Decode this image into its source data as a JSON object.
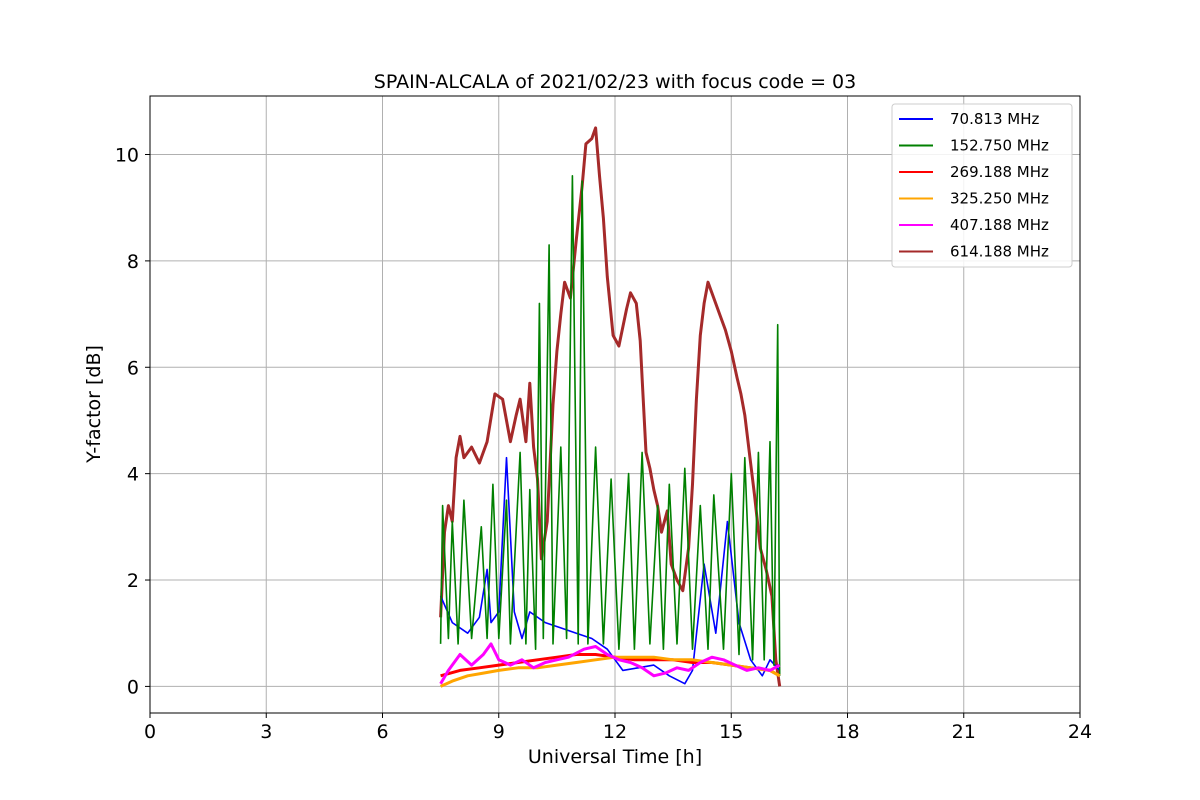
{
  "chart_data": {
    "type": "line",
    "title": "SPAIN-ALCALA of 2021/02/23 with focus code = 03",
    "xlabel": "Universal Time [h]",
    "ylabel": "Y-factor [dB]",
    "xlim": [
      0,
      24
    ],
    "ylim": [
      -0.5,
      11.1
    ],
    "xticks": [
      0,
      3,
      6,
      9,
      12,
      15,
      18,
      21,
      24
    ],
    "yticks": [
      0,
      2,
      4,
      6,
      8,
      10
    ],
    "grid": true,
    "legend_position": "top-right",
    "series": [
      {
        "name": " 70.813 MHz",
        "color": "#0000ff",
        "points": [
          [
            7.5,
            1.7
          ],
          [
            7.8,
            1.2
          ],
          [
            8.2,
            1.0
          ],
          [
            8.5,
            1.3
          ],
          [
            8.7,
            2.2
          ],
          [
            8.8,
            1.2
          ],
          [
            9.0,
            1.4
          ],
          [
            9.2,
            4.3
          ],
          [
            9.4,
            1.4
          ],
          [
            9.6,
            0.9
          ],
          [
            9.8,
            1.4
          ],
          [
            10.2,
            1.2
          ],
          [
            10.6,
            1.1
          ],
          [
            11.0,
            1.0
          ],
          [
            11.4,
            0.9
          ],
          [
            11.8,
            0.7
          ],
          [
            12.2,
            0.3
          ],
          [
            12.6,
            0.35
          ],
          [
            13.0,
            0.4
          ],
          [
            13.4,
            0.2
          ],
          [
            13.8,
            0.05
          ],
          [
            14.0,
            0.3
          ],
          [
            14.3,
            2.3
          ],
          [
            14.6,
            1.0
          ],
          [
            14.9,
            3.1
          ],
          [
            15.2,
            1.2
          ],
          [
            15.5,
            0.5
          ],
          [
            15.8,
            0.2
          ],
          [
            16.0,
            0.5
          ],
          [
            16.25,
            0.3
          ]
        ]
      },
      {
        "name": "152.750 MHz",
        "color": "#008000",
        "points": [
          [
            7.5,
            0.8
          ],
          [
            7.55,
            3.4
          ],
          [
            7.7,
            0.9
          ],
          [
            7.8,
            3.1
          ],
          [
            7.95,
            0.8
          ],
          [
            8.1,
            3.5
          ],
          [
            8.3,
            0.9
          ],
          [
            8.55,
            3.0
          ],
          [
            8.7,
            0.9
          ],
          [
            8.85,
            3.8
          ],
          [
            9.0,
            0.9
          ],
          [
            9.2,
            3.5
          ],
          [
            9.3,
            0.8
          ],
          [
            9.55,
            4.4
          ],
          [
            9.7,
            0.8
          ],
          [
            9.8,
            3.7
          ],
          [
            9.95,
            0.7
          ],
          [
            10.05,
            7.2
          ],
          [
            10.15,
            0.9
          ],
          [
            10.3,
            8.3
          ],
          [
            10.4,
            0.8
          ],
          [
            10.6,
            4.5
          ],
          [
            10.75,
            0.9
          ],
          [
            10.9,
            9.6
          ],
          [
            11.05,
            0.8
          ],
          [
            11.15,
            9.5
          ],
          [
            11.3,
            0.8
          ],
          [
            11.5,
            4.5
          ],
          [
            11.7,
            0.8
          ],
          [
            11.9,
            3.9
          ],
          [
            12.1,
            0.7
          ],
          [
            12.35,
            4.0
          ],
          [
            12.5,
            0.7
          ],
          [
            12.7,
            4.4
          ],
          [
            12.9,
            0.8
          ],
          [
            13.1,
            3.4
          ],
          [
            13.25,
            0.7
          ],
          [
            13.4,
            3.8
          ],
          [
            13.6,
            0.8
          ],
          [
            13.8,
            4.1
          ],
          [
            14.0,
            0.7
          ],
          [
            14.2,
            3.4
          ],
          [
            14.4,
            0.7
          ],
          [
            14.55,
            3.6
          ],
          [
            14.8,
            0.7
          ],
          [
            15.0,
            4.0
          ],
          [
            15.2,
            0.6
          ],
          [
            15.35,
            4.3
          ],
          [
            15.55,
            0.5
          ],
          [
            15.7,
            4.4
          ],
          [
            15.85,
            0.5
          ],
          [
            16.0,
            4.6
          ],
          [
            16.1,
            0.4
          ],
          [
            16.2,
            6.8
          ],
          [
            16.25,
            0.2
          ]
        ]
      },
      {
        "name": "269.188 MHz",
        "color": "#ff0000",
        "points": [
          [
            7.5,
            0.2
          ],
          [
            8.0,
            0.3
          ],
          [
            8.5,
            0.35
          ],
          [
            9.0,
            0.4
          ],
          [
            9.5,
            0.45
          ],
          [
            10.0,
            0.5
          ],
          [
            10.5,
            0.55
          ],
          [
            11.0,
            0.6
          ],
          [
            11.5,
            0.6
          ],
          [
            12.0,
            0.55
          ],
          [
            12.5,
            0.5
          ],
          [
            13.0,
            0.5
          ],
          [
            13.5,
            0.5
          ],
          [
            14.0,
            0.45
          ],
          [
            14.5,
            0.45
          ],
          [
            15.0,
            0.4
          ],
          [
            15.5,
            0.35
          ],
          [
            16.0,
            0.3
          ],
          [
            16.25,
            0.2
          ]
        ]
      },
      {
        "name": "325.250 MHz",
        "color": "#ffa500",
        "points": [
          [
            7.5,
            0.0
          ],
          [
            7.8,
            0.1
          ],
          [
            8.2,
            0.2
          ],
          [
            8.6,
            0.25
          ],
          [
            9.0,
            0.3
          ],
          [
            9.5,
            0.35
          ],
          [
            10.0,
            0.35
          ],
          [
            10.5,
            0.4
          ],
          [
            11.0,
            0.45
          ],
          [
            11.5,
            0.5
          ],
          [
            12.0,
            0.55
          ],
          [
            12.5,
            0.55
          ],
          [
            13.0,
            0.55
          ],
          [
            13.5,
            0.5
          ],
          [
            14.0,
            0.5
          ],
          [
            14.5,
            0.45
          ],
          [
            15.0,
            0.4
          ],
          [
            15.5,
            0.35
          ],
          [
            16.0,
            0.3
          ],
          [
            16.25,
            0.2
          ]
        ]
      },
      {
        "name": "407.188 MHz",
        "color": "#ff00ff",
        "points": [
          [
            7.5,
            0.05
          ],
          [
            7.7,
            0.3
          ],
          [
            8.0,
            0.6
          ],
          [
            8.3,
            0.4
          ],
          [
            8.6,
            0.6
          ],
          [
            8.8,
            0.8
          ],
          [
            9.0,
            0.5
          ],
          [
            9.3,
            0.4
          ],
          [
            9.6,
            0.5
          ],
          [
            9.9,
            0.35
          ],
          [
            10.2,
            0.45
          ],
          [
            10.5,
            0.5
          ],
          [
            10.8,
            0.55
          ],
          [
            11.2,
            0.7
          ],
          [
            11.5,
            0.75
          ],
          [
            11.8,
            0.6
          ],
          [
            12.1,
            0.5
          ],
          [
            12.4,
            0.45
          ],
          [
            12.7,
            0.35
          ],
          [
            13.0,
            0.2
          ],
          [
            13.3,
            0.25
          ],
          [
            13.6,
            0.35
          ],
          [
            13.9,
            0.3
          ],
          [
            14.2,
            0.45
          ],
          [
            14.5,
            0.55
          ],
          [
            14.8,
            0.5
          ],
          [
            15.1,
            0.4
          ],
          [
            15.4,
            0.3
          ],
          [
            15.7,
            0.35
          ],
          [
            16.0,
            0.3
          ],
          [
            16.25,
            0.4
          ]
        ]
      },
      {
        "name": "614.188 MHz",
        "color": "#a52a2a",
        "points": [
          [
            7.5,
            1.3
          ],
          [
            7.6,
            2.9
          ],
          [
            7.7,
            3.4
          ],
          [
            7.8,
            3.1
          ],
          [
            7.9,
            4.3
          ],
          [
            8.0,
            4.7
          ],
          [
            8.1,
            4.3
          ],
          [
            8.3,
            4.5
          ],
          [
            8.5,
            4.2
          ],
          [
            8.7,
            4.6
          ],
          [
            8.9,
            5.5
          ],
          [
            9.1,
            5.4
          ],
          [
            9.3,
            4.6
          ],
          [
            9.45,
            5.1
          ],
          [
            9.55,
            5.4
          ],
          [
            9.7,
            4.6
          ],
          [
            9.8,
            5.7
          ],
          [
            9.9,
            4.5
          ],
          [
            10.0,
            3.9
          ],
          [
            10.1,
            2.4
          ],
          [
            10.25,
            3.1
          ],
          [
            10.4,
            5.3
          ],
          [
            10.5,
            6.3
          ],
          [
            10.6,
            7.0
          ],
          [
            10.7,
            7.6
          ],
          [
            10.85,
            7.3
          ],
          [
            11.0,
            8.4
          ],
          [
            11.15,
            9.4
          ],
          [
            11.25,
            10.2
          ],
          [
            11.4,
            10.3
          ],
          [
            11.5,
            10.5
          ],
          [
            11.6,
            9.6
          ],
          [
            11.7,
            8.8
          ],
          [
            11.8,
            7.7
          ],
          [
            11.95,
            6.6
          ],
          [
            12.1,
            6.4
          ],
          [
            12.3,
            7.1
          ],
          [
            12.4,
            7.4
          ],
          [
            12.55,
            7.2
          ],
          [
            12.65,
            6.5
          ],
          [
            12.7,
            5.8
          ],
          [
            12.8,
            4.4
          ],
          [
            12.9,
            4.1
          ],
          [
            13.0,
            3.7
          ],
          [
            13.1,
            3.4
          ],
          [
            13.2,
            2.9
          ],
          [
            13.35,
            3.3
          ],
          [
            13.45,
            2.3
          ],
          [
            13.6,
            2.0
          ],
          [
            13.75,
            1.8
          ],
          [
            13.9,
            2.6
          ],
          [
            14.0,
            3.8
          ],
          [
            14.1,
            5.4
          ],
          [
            14.2,
            6.6
          ],
          [
            14.3,
            7.2
          ],
          [
            14.4,
            7.6
          ],
          [
            14.55,
            7.3
          ],
          [
            14.7,
            7.0
          ],
          [
            14.85,
            6.7
          ],
          [
            15.0,
            6.3
          ],
          [
            15.15,
            5.8
          ],
          [
            15.25,
            5.5
          ],
          [
            15.35,
            5.1
          ],
          [
            15.5,
            4.2
          ],
          [
            15.6,
            3.6
          ],
          [
            15.75,
            2.6
          ],
          [
            15.9,
            2.2
          ],
          [
            16.05,
            1.7
          ],
          [
            16.15,
            0.5
          ],
          [
            16.25,
            0.0
          ]
        ]
      }
    ]
  }
}
